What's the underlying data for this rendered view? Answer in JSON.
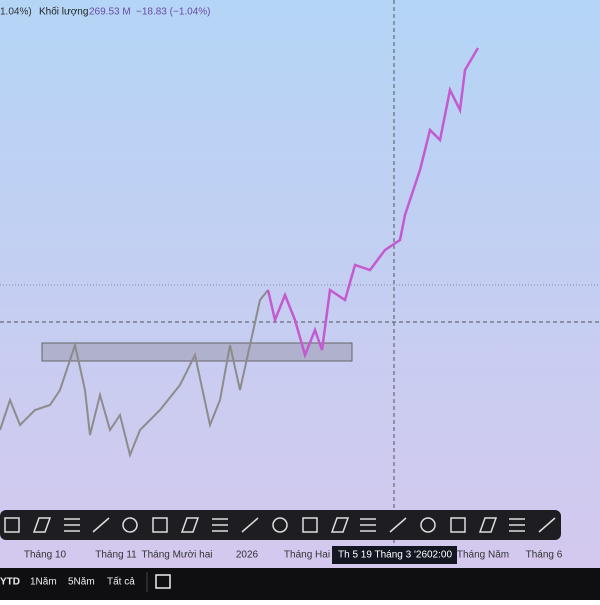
{
  "header": {
    "change_partial": "1.04%)",
    "volume_label": "Khối lượng",
    "volume_value": "269.53 M",
    "volume_change": "−18.83 (−1.04%)"
  },
  "time_axis": {
    "labels": [
      "Tháng 10",
      "Tháng 11",
      "Tháng Mười hai",
      "2026",
      "Tháng Hai",
      "Tháng Năm",
      "Tháng 6"
    ],
    "crosshair_date": "Th 5 19 Tháng 3 '26",
    "crosshair_time": "02:00"
  },
  "range_bar": {
    "buttons": [
      "YTD",
      "1Năm",
      "5Năm",
      "Tất cả"
    ]
  }
}
